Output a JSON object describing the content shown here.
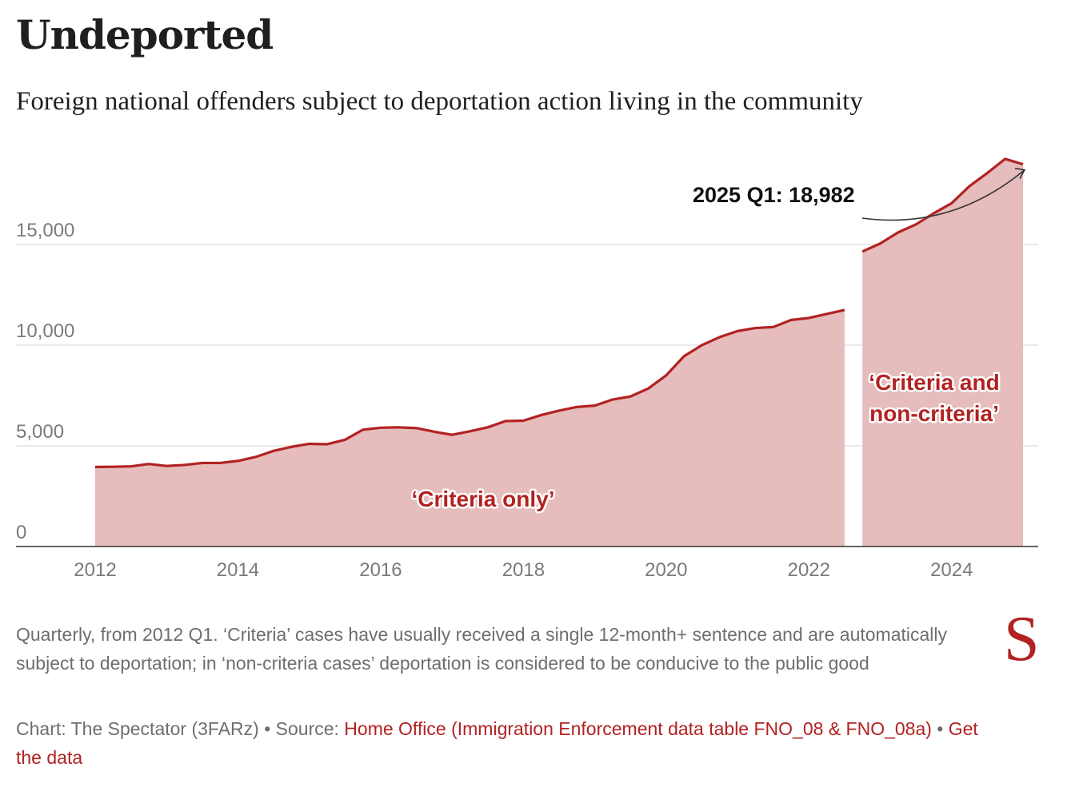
{
  "header": {
    "title": "Undeported",
    "subtitle": "Foreign national offenders subject to deportation action living in the community"
  },
  "chart_data": {
    "type": "area",
    "title": "Undeported",
    "subtitle": "Foreign national offenders subject to deportation action living in the community",
    "xlabel": "",
    "ylabel": "",
    "xlim": [
      2011,
      2025.6
    ],
    "ylim": [
      0,
      20000
    ],
    "x_ticks": [
      2012,
      2014,
      2016,
      2018,
      2020,
      2022,
      2024
    ],
    "x_tick_labels": [
      "2012",
      "2014",
      "2016",
      "2018",
      "2020",
      "2022",
      "2024"
    ],
    "y_ticks": [
      0,
      5000,
      10000,
      15000
    ],
    "y_tick_labels": [
      "0",
      "5,000",
      "10,000",
      "15,000"
    ],
    "grid": true,
    "colors": {
      "line": "#b22222",
      "fill": "#e6bcbc",
      "grid": "#dddddd",
      "axis": "#333333"
    },
    "series": [
      {
        "name": "‘Criteria only’",
        "x": [
          2012.0,
          2012.25,
          2012.5,
          2012.75,
          2013.0,
          2013.25,
          2013.5,
          2013.75,
          2014.0,
          2014.25,
          2014.5,
          2014.75,
          2015.0,
          2015.25,
          2015.5,
          2015.75,
          2016.0,
          2016.25,
          2016.5,
          2016.75,
          2017.0,
          2017.25,
          2017.5,
          2017.75,
          2018.0,
          2018.25,
          2018.5,
          2018.75,
          2019.0,
          2019.25,
          2019.5,
          2019.75,
          2020.0,
          2020.25,
          2020.5,
          2020.75,
          2021.0,
          2021.25,
          2021.5,
          2021.75,
          2022.0,
          2022.25,
          2022.5
        ],
        "values": [
          3950,
          3960,
          3980,
          4100,
          4000,
          4050,
          4150,
          4150,
          4250,
          4450,
          4750,
          4950,
          5100,
          5080,
          5300,
          5800,
          5900,
          5920,
          5880,
          5700,
          5550,
          5720,
          5920,
          6230,
          6250,
          6530,
          6750,
          6930,
          7000,
          7300,
          7450,
          7850,
          8500,
          9450,
          10000,
          10400,
          10700,
          10850,
          10900,
          11250,
          11350,
          11550,
          11750
        ]
      },
      {
        "name": "‘Criteria and non-criteria’",
        "x": [
          2022.75,
          2023.0,
          2023.25,
          2023.5,
          2023.75,
          2024.0,
          2024.25,
          2024.5,
          2024.75,
          2025.0
        ],
        "values": [
          14650,
          15050,
          15600,
          16000,
          16550,
          17050,
          17900,
          18550,
          19250,
          18982
        ]
      }
    ],
    "annotations": [
      {
        "text": "2025 Q1: 18,982",
        "x": 2025.0,
        "y": 18982
      },
      {
        "text": "‘Criteria only’",
        "series": 0
      },
      {
        "text_lines": [
          "‘Criteria and",
          "non-criteria’"
        ],
        "series": 1
      }
    ]
  },
  "footer": {
    "note": "Quarterly, from 2012 Q1. ‘Criteria’ cases have usually received a single 12-month+ sentence and are automatically subject to deportation; in ‘non-criteria cases’ deportation is considered to be conducive to the public good",
    "credit_prefix": "Chart: The Spectator (3FARz) • Source: ",
    "source_link": "Home Office (Immigration Enforcement data table FNO_08 & FNO_08a)",
    "separator": " • ",
    "data_link": "Get the data",
    "logo": "S"
  }
}
